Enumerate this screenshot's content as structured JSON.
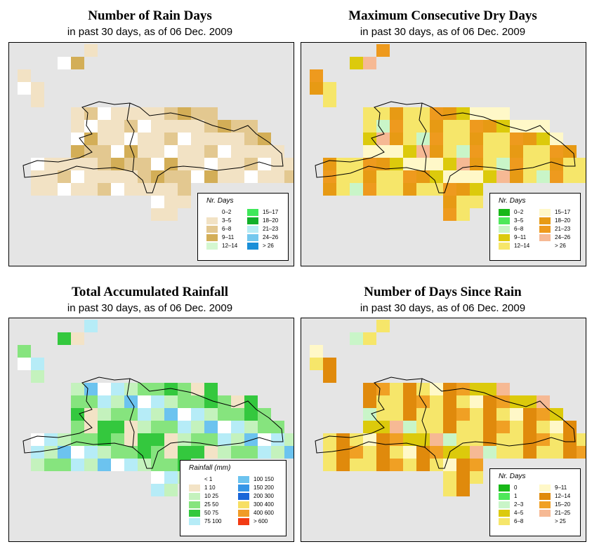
{
  "panels": [
    {
      "title": "Number of Rain Days",
      "subtitle": "in past 30 days, as of  06 Dec. 2009",
      "legend_title": "Nr. Days",
      "legend": [
        {
          "label": "0–2",
          "color": "#ffffff"
        },
        {
          "label": "3–5",
          "color": "#f2e2c4"
        },
        {
          "label": "6–8",
          "color": "#e3c890"
        },
        {
          "label": "9–11",
          "color": "#d3ae57"
        },
        {
          "label": "12–14",
          "color": "#d4f7d0"
        },
        {
          "label": "15–17",
          "color": "#3ee85a"
        },
        {
          "label": "18–20",
          "color": "#12b02a"
        },
        {
          "label": "21–23",
          "color": "#b8ecf5"
        },
        {
          "label": "24–26",
          "color": "#74c8ee"
        },
        {
          "label": "> 26",
          "color": "#1a8fd8"
        }
      ]
    },
    {
      "title": "Maximum Consecutive Dry Days",
      "subtitle": "in past 30 days, as of  06 Dec. 2009",
      "legend_title": "Nr. Days",
      "legend": [
        {
          "label": "0–2",
          "color": "#18b818"
        },
        {
          "label": "3–5",
          "color": "#4ee85a"
        },
        {
          "label": "6–8",
          "color": "#c9f5c8"
        },
        {
          "label": "9–11",
          "color": "#dcca0c"
        },
        {
          "label": "12–14",
          "color": "#f6e66a"
        },
        {
          "label": "15–17",
          "color": "#fff8c8"
        },
        {
          "label": "18–20",
          "color": "#e79a14"
        },
        {
          "label": "21–23",
          "color": "#ee9a1e"
        },
        {
          "label": "24–26",
          "color": "#f6b994"
        },
        {
          "label": "> 26",
          "color": "#ffffff"
        }
      ]
    },
    {
      "title": "Total Accumulated Rainfall",
      "subtitle": "in past 30 days, as of  06 Dec. 2009",
      "legend_title": "Rainfall (mm)",
      "legend": [
        {
          "label": "< 1",
          "color": "#ffffff"
        },
        {
          "label": "1    10",
          "color": "#f3e3c6"
        },
        {
          "label": "10    25",
          "color": "#c4f2bd"
        },
        {
          "label": "25    50",
          "color": "#86e47e"
        },
        {
          "label": "50    75",
          "color": "#34c83e"
        },
        {
          "label": "75  100",
          "color": "#b6ecf7"
        },
        {
          "label": "100  150",
          "color": "#6cc3ef"
        },
        {
          "label": "150  200",
          "color": "#3595e6"
        },
        {
          "label": "200  300",
          "color": "#1a66d8"
        },
        {
          "label": "300  400",
          "color": "#f7df63"
        },
        {
          "label": "400  600",
          "color": "#f09c28"
        },
        {
          "label": "> 600",
          "color": "#f23b14"
        }
      ]
    },
    {
      "title": "Number of Days Since Rain",
      "subtitle": "in past 30 days, as of  06 Dec. 2009",
      "legend_title": "Nr. Days",
      "legend": [
        {
          "label": "0",
          "color": "#18b818"
        },
        {
          "label": "1",
          "color": "#4ee85a"
        },
        {
          "label": "2–3",
          "color": "#c9f5c8"
        },
        {
          "label": "4–5",
          "color": "#dcca0c"
        },
        {
          "label": "6–8",
          "color": "#f6e66a"
        },
        {
          "label": "9–11",
          "color": "#fff8c8"
        },
        {
          "label": "12–14",
          "color": "#e08a0c"
        },
        {
          "label": "15–20",
          "color": "#f0a024"
        },
        {
          "label": "21–25",
          "color": "#f6b994"
        },
        {
          "label": "> 25",
          "color": "#ffffff"
        }
      ]
    }
  ]
}
